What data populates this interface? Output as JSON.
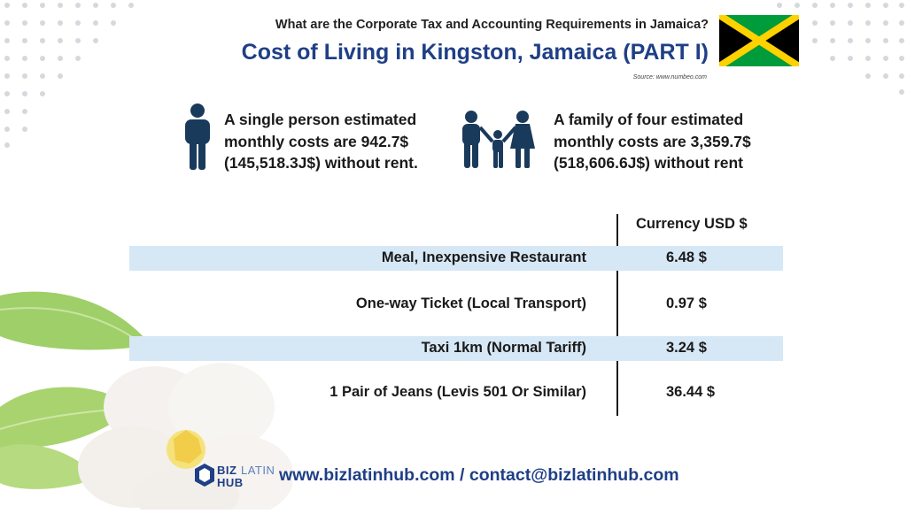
{
  "header": {
    "subtitle": "What are the Corporate Tax and Accounting Requirements in Jamaica?",
    "title": "Cost of Living in Kingston, Jamaica (PART I)",
    "source": "Source: www.numbeo.com"
  },
  "flag": {
    "name": "jamaica-flag",
    "colors": {
      "green": "#009b3a",
      "gold": "#fed100",
      "black": "#000000"
    }
  },
  "stats": {
    "single": "A single person estimated monthly costs are 942.7$ (145,518.3J$) without rent.",
    "family": "A family of four estimated monthly costs are 3,359.7$ (518,606.6J$) without rent"
  },
  "table": {
    "column_header": "Currency USD $",
    "rows": [
      {
        "label": "Meal, Inexpensive Restaurant",
        "value": "6.48 $"
      },
      {
        "label": "One-way Ticket (Local Transport)",
        "value": "0.97 $"
      },
      {
        "label": "Taxi 1km (Normal Tariff)",
        "value": "3.24 $"
      },
      {
        "label": "1 Pair of Jeans (Levis 501 Or Similar)",
        "value": "36.44 $"
      }
    ]
  },
  "logo": {
    "line1": "BIZ",
    "line1b": "LATIN",
    "line2": "HUB"
  },
  "footer": {
    "contact": "www.bizlatinhub.com / contact@bizlatinhub.com"
  },
  "colors": {
    "accent": "#1f3f86",
    "icon": "#1a3a5c",
    "row_shade": "#d6e7f5"
  }
}
